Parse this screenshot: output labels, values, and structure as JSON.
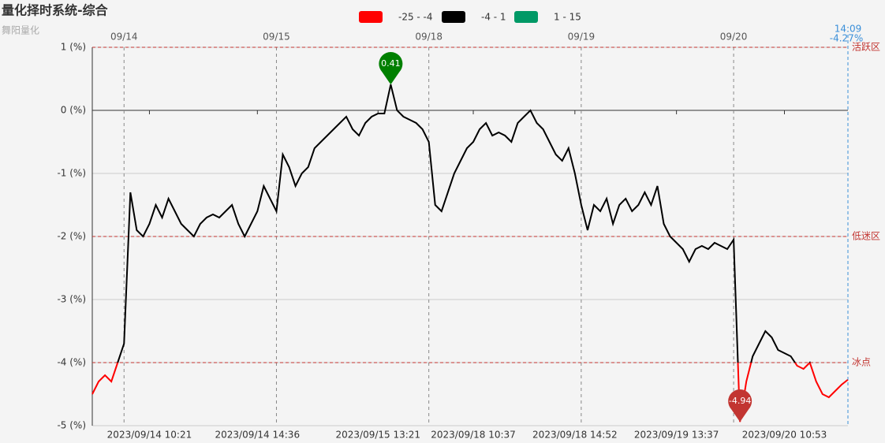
{
  "chart_data": {
    "type": "line",
    "title": "量化择时系统-综合",
    "subtitle": "舞阳量化",
    "categories": [
      null,
      null,
      null,
      null,
      null,
      null,
      null,
      null,
      null,
      "2023/09/14 10:21",
      null,
      null,
      null,
      null,
      null,
      null,
      null,
      null,
      null,
      null,
      null,
      null,
      null,
      null,
      null,
      null,
      "2023/09/14 14:36",
      null,
      null,
      null,
      null,
      null,
      null,
      null,
      null,
      null,
      null,
      null,
      null,
      null,
      null,
      null,
      null,
      null,
      null,
      "2023/09/15 13:21",
      null,
      null,
      null,
      null,
      null,
      null,
      null,
      null,
      null,
      null,
      null,
      null,
      null,
      null,
      "2023/09/18 10:37",
      null,
      null,
      null,
      null,
      null,
      null,
      null,
      null,
      null,
      null,
      null,
      null,
      null,
      null,
      null,
      "2023/09/18 14:52",
      null,
      null,
      null,
      null,
      null,
      null,
      null,
      null,
      null,
      null,
      null,
      null,
      null,
      null,
      null,
      "2023/09/19 13:37",
      null,
      null,
      null,
      null,
      null,
      null,
      null,
      null,
      null,
      null,
      null,
      null,
      null,
      null,
      null,
      null,
      "2023/09/20 10:53",
      null,
      null,
      null,
      null,
      null,
      null,
      null,
      null,
      null,
      null
    ],
    "values": [
      -4.5,
      -4.3,
      -4.2,
      -4.3,
      -4.0,
      -3.7,
      -1.3,
      -1.9,
      -2.0,
      -1.8,
      -1.5,
      -1.7,
      -1.4,
      -1.6,
      -1.8,
      -1.9,
      -2.0,
      -1.8,
      -1.7,
      -1.65,
      -1.7,
      -1.6,
      -1.5,
      -1.8,
      -2.0,
      -1.8,
      -1.6,
      -1.2,
      -1.4,
      -1.6,
      -0.7,
      -0.9,
      -1.2,
      -1.0,
      -0.9,
      -0.6,
      -0.5,
      -0.4,
      -0.3,
      -0.2,
      -0.1,
      -0.3,
      -0.4,
      -0.2,
      -0.1,
      -0.05,
      -0.05,
      0.41,
      0.0,
      -0.1,
      -0.15,
      -0.2,
      -0.3,
      -0.5,
      -1.5,
      -1.6,
      -1.3,
      -1.0,
      -0.8,
      -0.6,
      -0.5,
      -0.3,
      -0.2,
      -0.4,
      -0.35,
      -0.4,
      -0.5,
      -0.2,
      -0.1,
      0.0,
      -0.2,
      -0.3,
      -0.5,
      -0.7,
      -0.8,
      -0.6,
      -1.0,
      -1.5,
      -1.9,
      -1.5,
      -1.6,
      -1.4,
      -1.8,
      -1.5,
      -1.4,
      -1.6,
      -1.5,
      -1.3,
      -1.5,
      -1.2,
      -1.8,
      -2.0,
      -2.1,
      -2.2,
      -2.4,
      -2.2,
      -2.15,
      -2.2,
      -2.1,
      -2.15,
      -2.2,
      -2.05,
      -4.94,
      -4.3,
      -3.9,
      -3.7,
      -3.5,
      -3.6,
      -3.8,
      -3.85,
      -3.9,
      -4.05,
      -4.1,
      -4.0,
      -4.3,
      -4.5,
      -4.55,
      -4.45,
      -4.35,
      -4.27
    ],
    "pieces": [
      {
        "min": -25,
        "max": -4,
        "label": "-25 - -4",
        "color": "#ff0000"
      },
      {
        "min": -4,
        "max": 1,
        "label": "-4 - 1",
        "color": "#000000"
      },
      {
        "min": 1,
        "max": 15,
        "label": "1 - 15",
        "color": "#009966"
      }
    ],
    "ylim": [
      -5,
      1
    ],
    "yticks": [
      {
        "value": -5,
        "label": "-5 (%)"
      },
      {
        "value": -4,
        "label": "-4 (%)"
      },
      {
        "value": -3,
        "label": "-3 (%)"
      },
      {
        "value": -2,
        "label": "-2 (%)"
      },
      {
        "value": -1,
        "label": "-1 (%)"
      },
      {
        "value": 0,
        "label": "0 (%)"
      },
      {
        "value": 1,
        "label": "1 (%)"
      }
    ],
    "grid": true,
    "day_markers": [
      {
        "index": 5,
        "label": "09/14"
      },
      {
        "index": 29,
        "label": "09/15"
      },
      {
        "index": 53,
        "label": "09/18"
      },
      {
        "index": 77,
        "label": "09/19"
      },
      {
        "index": 101,
        "label": "09/20"
      }
    ],
    "mark_lines": [
      {
        "value": 1,
        "label": "活跃区"
      },
      {
        "value": -2,
        "label": "低迷区"
      },
      {
        "value": -4,
        "label": "冰点"
      }
    ],
    "mark_points": [
      {
        "index": 47,
        "color": "#008000"
      },
      {
        "index": 102,
        "color": "#c23531"
      }
    ],
    "end_marker": {
      "time": "14:09",
      "label": "-4.27%",
      "value": -4.27
    }
  }
}
